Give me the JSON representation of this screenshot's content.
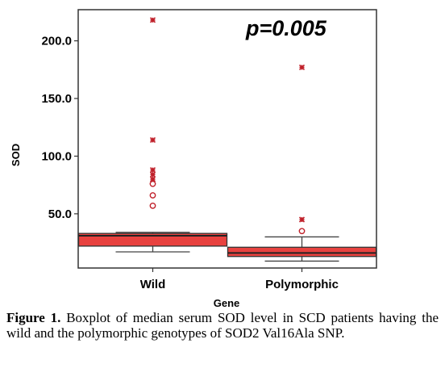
{
  "chart_data": {
    "type": "boxplot",
    "xlabel": "Gene",
    "ylabel": "SOD",
    "categories": [
      "Wild",
      "Polymorphic"
    ],
    "yticks": [
      "50.0",
      "100.0",
      "150.0",
      "200.0"
    ],
    "ylim": [
      3,
      227
    ],
    "annotation": "p=0.005",
    "box_color": "#e8423f",
    "outlier_color": "#c0202a",
    "boxes": [
      {
        "category": "Wild",
        "whisker_low": 17,
        "q1": 22,
        "median": 31,
        "q3": 33,
        "whisker_high": 34,
        "outliers_circle": [
          57,
          66,
          76
        ],
        "outliers_star": [
          80,
          84,
          88,
          114,
          218
        ]
      },
      {
        "category": "Polymorphic",
        "whisker_low": 9,
        "q1": 13,
        "median": 16,
        "q3": 21,
        "whisker_high": 30,
        "outliers_circle": [
          35
        ],
        "outliers_star": [
          45,
          177
        ]
      }
    ]
  },
  "caption": {
    "label": "Figure 1.",
    "text": " Boxplot of median serum SOD level in SCD patients having the wild and the polymorphic genotypes of SOD2 Val16Ala SNP."
  }
}
